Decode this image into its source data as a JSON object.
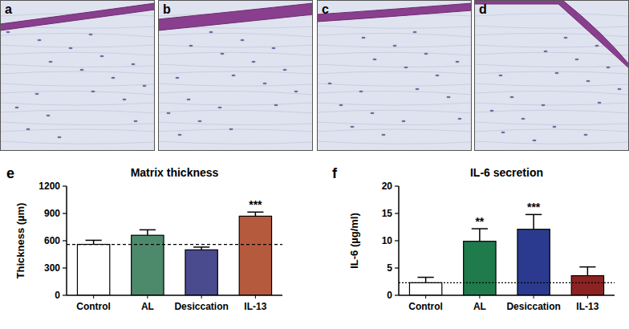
{
  "images": [
    {
      "label": "a"
    },
    {
      "label": "b"
    },
    {
      "label": "c"
    },
    {
      "label": "d"
    }
  ],
  "chart_data": [
    {
      "type": "bar",
      "panel": "e",
      "title": "Matrix thickness",
      "y_label": "Thickness (µm)",
      "categories": [
        "Control",
        "AL",
        "Desiccation",
        "IL-13"
      ],
      "values": [
        560,
        660,
        500,
        870
      ],
      "errors": [
        45,
        60,
        30,
        45
      ],
      "colors": [
        "#ffffff",
        "#4d8a6b",
        "#4a4a8e",
        "#b65a3e"
      ],
      "ylim": [
        0,
        1200
      ],
      "yticks": [
        0,
        300,
        600,
        900,
        1200
      ],
      "annotations": [
        {
          "text": "***",
          "category": "IL-13"
        }
      ]
    },
    {
      "type": "bar",
      "panel": "f",
      "title": "IL-6 secretion",
      "y_label": "IL-6 (µg/ml)",
      "categories": [
        "Control",
        "AL",
        "Desiccation",
        "IL-13"
      ],
      "values": [
        2.3,
        9.9,
        12.1,
        3.6
      ],
      "errors": [
        1.0,
        2.3,
        2.7,
        1.6
      ],
      "colors": [
        "#ffffff",
        "#1f7a4c",
        "#2b3a8e",
        "#8c2222"
      ],
      "ylim": [
        0,
        20
      ],
      "yticks": [
        0,
        5,
        10,
        15,
        20
      ],
      "annotations": [
        {
          "text": "**",
          "category": "AL"
        },
        {
          "text": "***",
          "category": "Desiccation"
        }
      ]
    }
  ]
}
